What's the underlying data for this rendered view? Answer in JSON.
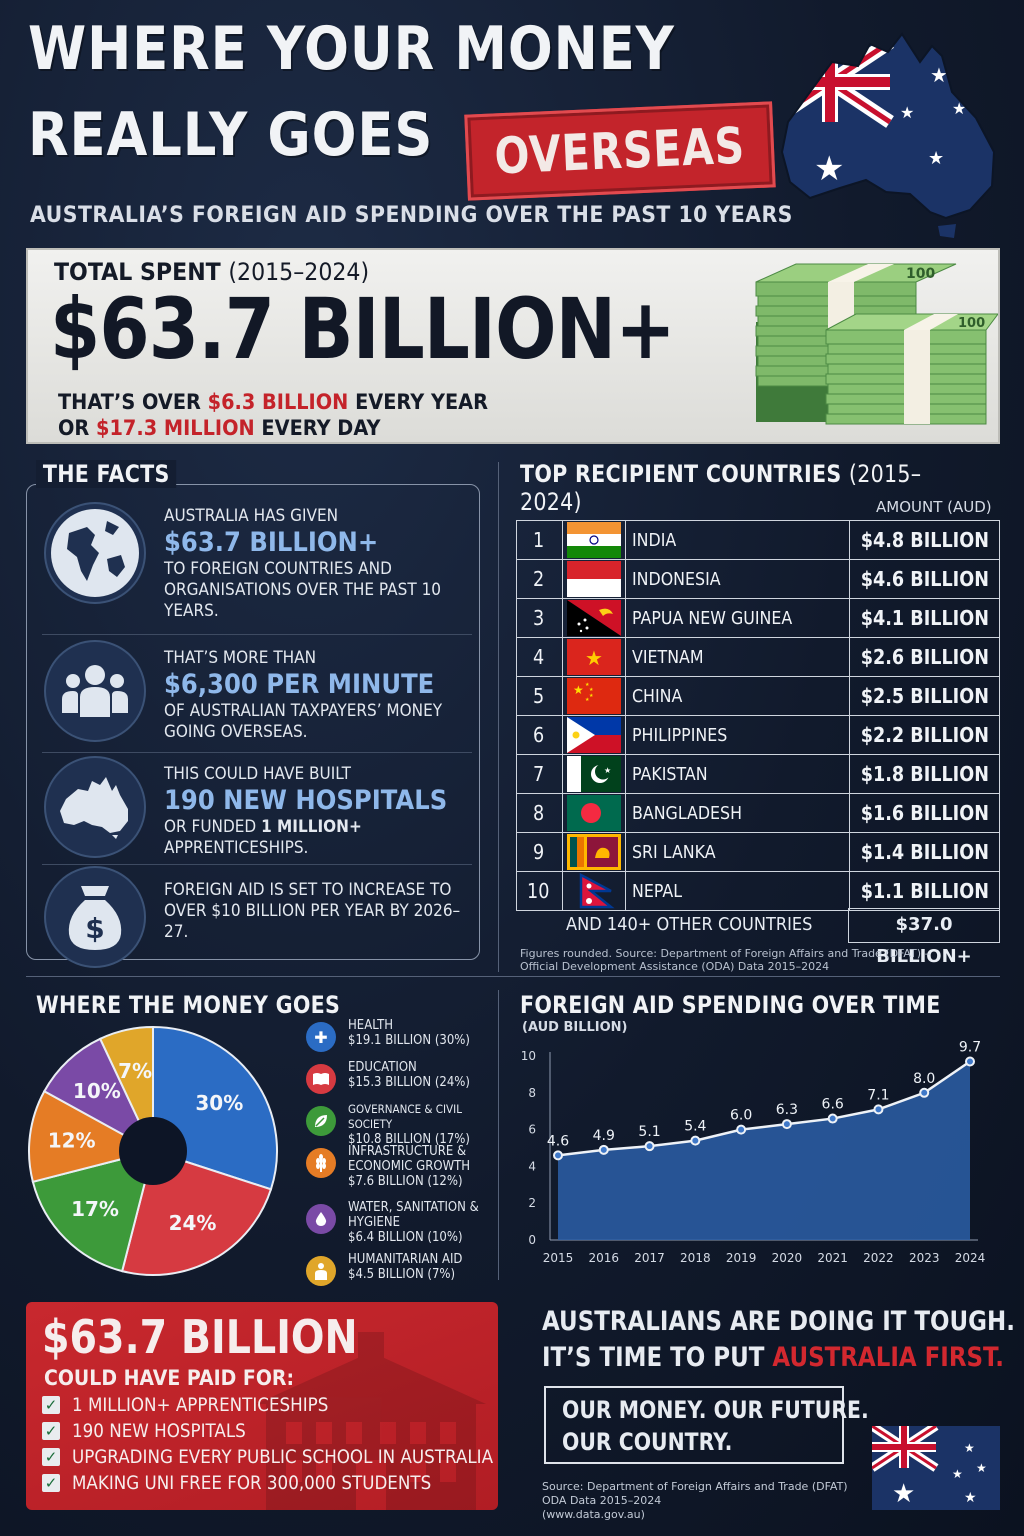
{
  "header": {
    "title_line1": "WHERE YOUR MONEY",
    "title_line2": "REALLY GOES",
    "stamp": "OVERSEAS",
    "subtitle": "AUSTRALIA’S FOREIGN AID SPENDING OVER THE PAST 10 YEARS",
    "map_icon": "australia-map-flag-icon"
  },
  "total": {
    "label": "TOTAL SPENT",
    "label_period": "(2015–2024)",
    "amount": "$63.7 BILLION+",
    "line1_pre": "THAT’S OVER ",
    "line1_hl": "$6.3 BILLION",
    "line1_post": " EVERY YEAR",
    "line2_pre": "OR ",
    "line2_hl": "$17.3 MILLION",
    "line2_post": " EVERY DAY",
    "image_icon": "cash-stacks-icon",
    "accent_color": "#c4232a"
  },
  "facts": {
    "heading": "THE FACTS",
    "items": [
      {
        "icon": "globe-icon",
        "pre": "AUSTRALIA HAS GIVEN",
        "highlight": "$63.7 BILLION+",
        "post": "TO FOREIGN COUNTRIES AND ORGANISATIONS OVER THE PAST 10 YEARS."
      },
      {
        "icon": "people-icon",
        "pre": "THAT’S MORE THAN",
        "highlight": "$6,300 PER MINUTE",
        "post": "OF AUSTRALIAN TAXPAYERS’ MONEY GOING OVERSEAS."
      },
      {
        "icon": "australia-icon",
        "pre": "THIS COULD HAVE BUILT",
        "highlight": "190 NEW HOSPITALS",
        "post_pre": "OR FUNDED ",
        "post_bold": "1 MILLION+",
        "post_post": " APPRENTICESHIPS."
      },
      {
        "icon": "money-bag-icon",
        "pre": "FOREIGN AID IS SET TO INCREASE TO OVER $10 BILLION PER YEAR BY 2026–27."
      }
    ]
  },
  "recipients": {
    "heading": "TOP RECIPIENT COUNTRIES",
    "heading_period": "(2015–2024)",
    "amount_header": "AMOUNT (AUD)",
    "rows": [
      {
        "rank": "1",
        "country": "INDIA",
        "amount": "$4.8 BILLION",
        "flag": "india-flag-icon"
      },
      {
        "rank": "2",
        "country": "INDONESIA",
        "amount": "$4.6 BILLION",
        "flag": "indonesia-flag-icon"
      },
      {
        "rank": "3",
        "country": "PAPUA NEW GUINEA",
        "amount": "$4.1 BILLION",
        "flag": "png-flag-icon"
      },
      {
        "rank": "4",
        "country": "VIETNAM",
        "amount": "$2.6 BILLION",
        "flag": "vietnam-flag-icon"
      },
      {
        "rank": "5",
        "country": "CHINA",
        "amount": "$2.5 BILLION",
        "flag": "china-flag-icon"
      },
      {
        "rank": "6",
        "country": "PHILIPPINES",
        "amount": "$2.2 BILLION",
        "flag": "philippines-flag-icon"
      },
      {
        "rank": "7",
        "country": "PAKISTAN",
        "amount": "$1.8 BILLION",
        "flag": "pakistan-flag-icon"
      },
      {
        "rank": "8",
        "country": "BANGLADESH",
        "amount": "$1.6 BILLION",
        "flag": "bangladesh-flag-icon"
      },
      {
        "rank": "9",
        "country": "SRI LANKA",
        "amount": "$1.4 BILLION",
        "flag": "sri-lanka-flag-icon"
      },
      {
        "rank": "10",
        "country": "NEPAL",
        "amount": "$1.1 BILLION",
        "flag": "nepal-flag-icon"
      }
    ],
    "other_label": "AND 140+ OTHER COUNTRIES",
    "other_amount": "$37.0 BILLION+",
    "note_line1": "Figures rounded. Source: Department of Foreign Affairs and Trade (DFAT) –",
    "note_line2": "Official Development Assistance (ODA) Data 2015–2024"
  },
  "pie_section": {
    "heading": "WHERE THE MONEY GOES",
    "legend": [
      {
        "icon": "health-cross-icon",
        "color": "#2b6cc4",
        "name": "HEALTH",
        "detail": "$19.1 BILLION (30%)"
      },
      {
        "icon": "book-icon",
        "color": "#d63a41",
        "name": "EDUCATION",
        "detail": "$15.3 BILLION (24%)"
      },
      {
        "icon": "leaf-icon",
        "color": "#3d9a3a",
        "name": "GOVERNANCE & CIVIL SOCIETY",
        "detail": "$10.8 BILLION (17%)"
      },
      {
        "icon": "wheat-icon",
        "color": "#e57c25",
        "name": "INFRASTRUCTURE & ECONOMIC GROWTH",
        "detail": "$7.6 BILLION (12%)"
      },
      {
        "icon": "water-drop-icon",
        "color": "#7a4aa6",
        "name": "WATER, SANITATION & HYGIENE",
        "detail": "$6.4 BILLION (10%)"
      },
      {
        "icon": "aid-worker-icon",
        "color": "#e0a62a",
        "name": "HUMANITARIAN AID",
        "detail": "$4.5 BILLION (7%)"
      }
    ]
  },
  "chart_data": [
    {
      "type": "pie",
      "title": "WHERE THE MONEY GOES",
      "slices": [
        {
          "label": "HEALTH",
          "value": 30,
          "color": "#2b6cc4"
        },
        {
          "label": "EDUCATION",
          "value": 24,
          "color": "#d63a41"
        },
        {
          "label": "GOVERNANCE & CIVIL SOCIETY",
          "value": 17,
          "color": "#3d9a3a"
        },
        {
          "label": "INFRASTRUCTURE & ECONOMIC GROWTH",
          "value": 12,
          "color": "#e57c25"
        },
        {
          "label": "WATER, SANITATION & HYGIENE",
          "value": 10,
          "color": "#7a4aa6"
        },
        {
          "label": "HUMANITARIAN AID",
          "value": 7,
          "color": "#e0a62a"
        }
      ],
      "donut": true
    },
    {
      "type": "area",
      "title": "FOREIGN AID SPENDING OVER TIME",
      "ylabel": "(AUD BILLION)",
      "x": [
        "2015",
        "2016",
        "2017",
        "2018",
        "2019",
        "2020",
        "2021",
        "2022",
        "2023",
        "2024"
      ],
      "values": [
        4.6,
        4.9,
        5.1,
        5.4,
        6.0,
        6.3,
        6.6,
        7.1,
        8.0,
        9.7
      ],
      "data_labels": [
        "4.6",
        "4.9",
        "5.1",
        "5.4",
        "6.0",
        "6.3",
        "6.6",
        "7.1",
        "8.0",
        "9.7"
      ],
      "ylim": [
        0,
        10
      ],
      "yticks": [
        0,
        2,
        4,
        6,
        8,
        10
      ],
      "grid": false,
      "color": "#2b5fa8"
    }
  ],
  "redbox": {
    "amount": "$63.7 BILLION",
    "sub": "COULD HAVE PAID FOR:",
    "items": [
      "1 MILLION+ APPRENTICESHIPS",
      "190 NEW HOSPITALS",
      "UPGRADING EVERY PUBLIC SCHOOL IN AUSTRALIA",
      "MAKING UNI FREE FOR 300,000 STUDENTS"
    ]
  },
  "closing": {
    "line1": "AUSTRALIANS ARE DOING IT TOUGH.",
    "line2_pre": "IT’S TIME TO PUT ",
    "line2_hl": "AUSTRALIA FIRST.",
    "motto1": "OUR MONEY. OUR FUTURE.",
    "motto2": "OUR COUNTRY.",
    "source1": "Source: Department of Foreign Affairs and Trade (DFAT)",
    "source2": "ODA Data 2015–2024",
    "source3": "(www.data.gov.au)",
    "flag_icon": "australia-flag-icon"
  }
}
